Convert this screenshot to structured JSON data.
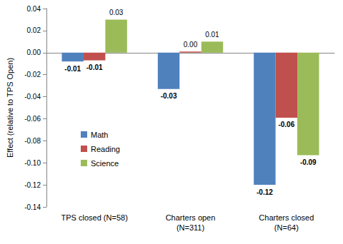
{
  "chart_data": {
    "type": "bar",
    "y_label": "Effect (relative to TPS Open)",
    "categories": [
      "TPS closed (N=58)",
      "Charters open\n(N=311)",
      "Charters closed\n(N=64)"
    ],
    "series": [
      {
        "name": "Math",
        "color": "#4f81bd",
        "values": [
          -0.008,
          -0.033,
          -0.12
        ],
        "value_labels": [
          "-0.01",
          "-0.03",
          "-0.12"
        ]
      },
      {
        "name": "Reading",
        "color": "#c0504d",
        "values": [
          -0.007,
          0.001,
          -0.059
        ],
        "value_labels": [
          "-0.01",
          "0.00",
          "-0.06"
        ]
      },
      {
        "name": "Science",
        "color": "#9bbb59",
        "values": [
          0.03,
          0.01,
          -0.093
        ],
        "value_labels": [
          "0.03",
          "0.01",
          "-0.09"
        ]
      }
    ],
    "ylim": [
      -0.14,
      0.04
    ],
    "yticks": [
      {
        "value": -0.14,
        "label": "-0.14"
      },
      {
        "value": -0.12,
        "label": "-0.12"
      },
      {
        "value": -0.1,
        "label": "-0.10"
      },
      {
        "value": -0.08,
        "label": "-0.08"
      },
      {
        "value": -0.06,
        "label": "-0.06"
      },
      {
        "value": -0.04,
        "label": "-0.04"
      },
      {
        "value": -0.02,
        "label": "-0.02"
      },
      {
        "value": 0,
        "label": "0.00"
      },
      {
        "value": 0.02,
        "label": "0.02"
      },
      {
        "value": 0.04,
        "label": "0.04"
      }
    ],
    "grid": false,
    "legend": "left",
    "data_labels": true
  }
}
